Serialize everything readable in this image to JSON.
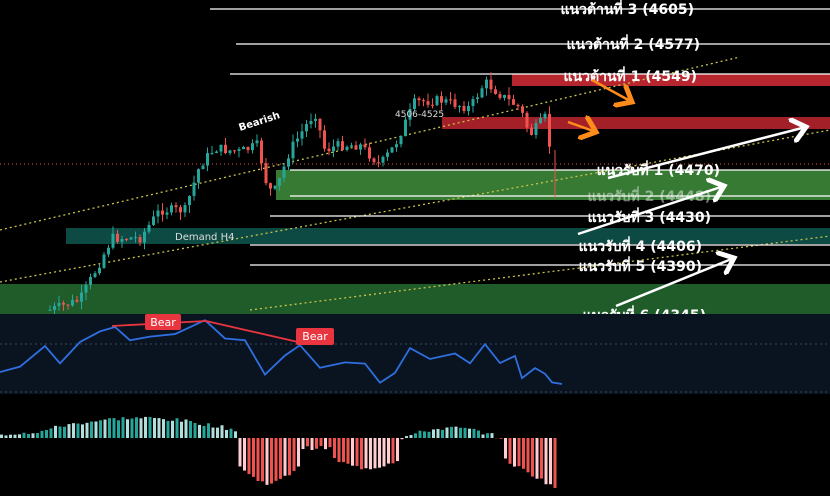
{
  "chart_data": {
    "type": "candlestick",
    "title": "",
    "resistance_levels": [
      {
        "name": "แนวต้านที่ 3",
        "value": 4605,
        "label": "แนวต้านที่ 3 (4605)"
      },
      {
        "name": "แนวต้านที่ 2",
        "value": 4577,
        "label": "แนวต้านที่ 2 (4577)"
      },
      {
        "name": "แนวต้านที่ 1",
        "value": 4549,
        "label": "แนวต้านที่ 1 (4549)"
      }
    ],
    "support_levels": [
      {
        "name": "แนวรับที่ 1",
        "value": 4470,
        "label": "แนวรับที่ 1 (4470)"
      },
      {
        "name": "แนวรับที่ 2",
        "value": 4448,
        "label": "แนวรับที่ 2 (4448)"
      },
      {
        "name": "แนวรับที่ 3",
        "value": 4430,
        "label": "แนวรับที่ 3 (4430)"
      },
      {
        "name": "แนวรับที่ 4",
        "value": 4406,
        "label": "แนวรับที่ 4 (4406)"
      },
      {
        "name": "แนวรับที่ 5",
        "value": 4390,
        "label": "แนวรับที่ 5 (4390)"
      }
    ],
    "partial_label": "แนวรับที่ 6 (4345)",
    "annotations": {
      "bearish_label": "Bearish",
      "range_label": "4506-4525",
      "demand_zone_label": "Demand H4",
      "bear_tag_1": "Bear",
      "bear_tag_2": "Bear"
    },
    "price_range": [
      4340,
      4615
    ],
    "candle_count": 112,
    "colors": {
      "up": "#26a69a",
      "down": "#ef5350",
      "resistance_zone": "#b7262e",
      "support_zone": "#4caf50",
      "demand_zone": "#0e4a44",
      "lower_zone": "#1f5c2a",
      "channel": "#c8c24a",
      "oscillator": "#2f6fe0",
      "arrow_orange": "#ff8c1a",
      "arrow_white": "#ffffff",
      "bear_tag": "#e8353f"
    }
  }
}
